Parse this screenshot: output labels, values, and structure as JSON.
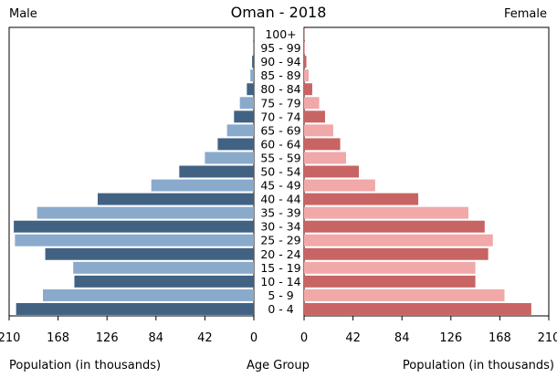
{
  "chart_data": {
    "type": "bar",
    "title": "Oman - 2018",
    "left_label": "Male",
    "right_label": "Female",
    "xlabel_left": "Population (in thousands)",
    "xlabel_center": "Age Group",
    "xlabel_right": "Population (in thousands)",
    "categories": [
      "0 - 4",
      "5 - 9",
      "10 - 14",
      "15 - 19",
      "20 - 24",
      "25 - 29",
      "30 - 34",
      "35 - 39",
      "40 - 44",
      "45 - 49",
      "50 - 54",
      "55 - 59",
      "60 - 64",
      "65 - 69",
      "70 - 74",
      "75 - 79",
      "80 - 84",
      "85 - 89",
      "90 - 94",
      "95 - 99",
      "100+"
    ],
    "series": [
      {
        "name": "Male",
        "values": [
          204,
          181,
          154,
          155,
          179,
          205,
          206,
          186,
          134,
          88,
          64,
          42,
          31,
          23,
          17,
          12,
          6,
          3,
          1.5,
          0.8,
          0.3
        ]
      },
      {
        "name": "Female",
        "values": [
          195,
          172,
          147,
          147,
          158,
          162,
          155,
          141,
          98,
          61,
          47,
          36,
          31,
          25,
          18,
          13,
          7,
          4,
          2,
          0.8,
          0.3
        ]
      }
    ],
    "ticks_left": [
      "210",
      "168",
      "126",
      "84",
      "42",
      "0"
    ],
    "ticks_right": [
      "0",
      "42",
      "84",
      "126",
      "168",
      "210"
    ],
    "xlim": [
      0,
      210
    ],
    "colors": {
      "male_dark": "#426283",
      "male_light": "#8aaacc",
      "female_dark": "#c86464",
      "female_light": "#f0a8a8",
      "axis": "#000000"
    }
  }
}
